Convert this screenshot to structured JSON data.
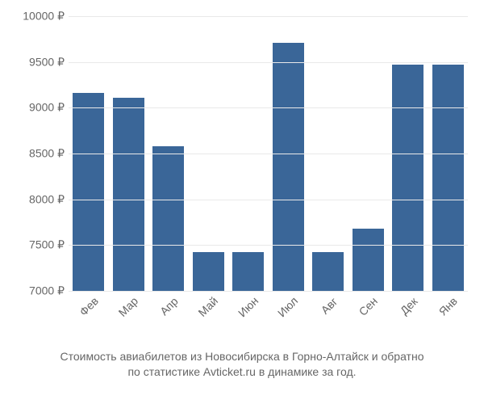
{
  "chart": {
    "type": "bar",
    "background_color": "#ffffff",
    "bar_color": "#3a6698",
    "grid_color": "#e9e9e9",
    "axis_text_color": "#666666",
    "font_family": "Arial, Helvetica, sans-serif",
    "label_fontsize": 14,
    "caption_fontsize": 14,
    "ylim": [
      7000,
      10000
    ],
    "ytick_step": 500,
    "ytick_labels": [
      "7000 ₽",
      "7500 ₽",
      "8000 ₽",
      "8500 ₽",
      "9000 ₽",
      "9500 ₽",
      "10000 ₽"
    ],
    "categories": [
      "Фев",
      "Мар",
      "Апр",
      "Май",
      "Июн",
      "Июл",
      "Авг",
      "Сен",
      "Дек",
      "Янв"
    ],
    "values": [
      9160,
      9110,
      8580,
      7420,
      7420,
      9710,
      7420,
      7680,
      9470,
      9470
    ],
    "bar_width": 0.78,
    "caption_line1": "Стоимость авиабилетов из Новосибирска в Горно-Алтайск и обратно",
    "caption_line2": "по статистике Avticket.ru в динамике за год."
  }
}
